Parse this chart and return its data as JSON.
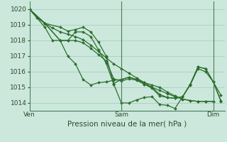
{
  "xlabel": "Pression niveau de la mer( hPa )",
  "bg_color": "#cce8dc",
  "grid_color": "#aacfbe",
  "line_color": "#2d6e2d",
  "marker": "D",
  "marker_size": 2.0,
  "line_width": 0.9,
  "ylim": [
    1013.5,
    1020.5
  ],
  "yticks": [
    1014,
    1015,
    1016,
    1017,
    1018,
    1019,
    1020
  ],
  "tick_fontsize": 6.5,
  "label_fontsize": 7.5,
  "xtick_labels": [
    "Ven",
    "Sam",
    "Dim"
  ],
  "xtick_positions": [
    0,
    96,
    192
  ],
  "xlim": [
    0,
    204
  ],
  "vline_positions": [
    0,
    96,
    192
  ],
  "series": [
    [
      [
        0,
        1020.0
      ],
      [
        8,
        1019.45
      ],
      [
        16,
        1019.1
      ],
      [
        24,
        1018.8
      ],
      [
        32,
        1018.55
      ],
      [
        40,
        1018.4
      ],
      [
        48,
        1018.25
      ],
      [
        56,
        1018.05
      ],
      [
        64,
        1017.7
      ],
      [
        72,
        1017.3
      ],
      [
        80,
        1016.9
      ],
      [
        88,
        1016.5
      ],
      [
        96,
        1016.2
      ],
      [
        104,
        1015.9
      ],
      [
        112,
        1015.6
      ],
      [
        120,
        1015.3
      ],
      [
        128,
        1015.0
      ],
      [
        136,
        1014.8
      ],
      [
        144,
        1014.6
      ],
      [
        152,
        1014.4
      ],
      [
        160,
        1014.25
      ],
      [
        168,
        1014.15
      ],
      [
        176,
        1014.1
      ],
      [
        184,
        1014.1
      ],
      [
        192,
        1014.1
      ]
    ],
    [
      [
        0,
        1020.0
      ],
      [
        16,
        1019.1
      ],
      [
        32,
        1018.85
      ],
      [
        40,
        1018.6
      ],
      [
        48,
        1018.7
      ],
      [
        56,
        1018.85
      ],
      [
        64,
        1018.55
      ],
      [
        72,
        1017.9
      ],
      [
        80,
        1017.0
      ],
      [
        88,
        1015.25
      ],
      [
        96,
        1015.5
      ],
      [
        104,
        1015.65
      ],
      [
        112,
        1015.5
      ],
      [
        120,
        1015.3
      ],
      [
        128,
        1015.15
      ],
      [
        136,
        1015.0
      ],
      [
        144,
        1014.7
      ],
      [
        152,
        1014.45
      ],
      [
        160,
        1014.25
      ],
      [
        168,
        1014.15
      ],
      [
        176,
        1014.1
      ],
      [
        184,
        1014.1
      ],
      [
        192,
        1014.1
      ]
    ],
    [
      [
        0,
        1020.0
      ],
      [
        16,
        1019.1
      ],
      [
        32,
        1018.0
      ],
      [
        40,
        1018.0
      ],
      [
        48,
        1018.55
      ],
      [
        56,
        1018.55
      ],
      [
        64,
        1018.25
      ],
      [
        72,
        1017.4
      ],
      [
        80,
        1016.55
      ],
      [
        88,
        1015.2
      ],
      [
        96,
        1014.0
      ],
      [
        104,
        1014.0
      ],
      [
        112,
        1014.2
      ],
      [
        120,
        1014.35
      ],
      [
        128,
        1014.4
      ],
      [
        136,
        1013.9
      ],
      [
        144,
        1013.85
      ],
      [
        152,
        1013.65
      ],
      [
        160,
        1014.4
      ],
      [
        168,
        1015.2
      ],
      [
        176,
        1016.3
      ],
      [
        184,
        1016.2
      ],
      [
        192,
        1015.35
      ],
      [
        200,
        1014.5
      ]
    ],
    [
      [
        0,
        1020.0
      ],
      [
        16,
        1019.1
      ],
      [
        32,
        1018.0
      ],
      [
        40,
        1017.0
      ],
      [
        48,
        1016.5
      ],
      [
        56,
        1015.5
      ],
      [
        64,
        1015.15
      ],
      [
        72,
        1015.3
      ],
      [
        80,
        1015.35
      ],
      [
        88,
        1015.45
      ],
      [
        96,
        1015.5
      ],
      [
        104,
        1015.65
      ],
      [
        112,
        1015.5
      ],
      [
        120,
        1015.2
      ],
      [
        128,
        1014.95
      ],
      [
        136,
        1014.45
      ],
      [
        144,
        1014.35
      ],
      [
        152,
        1014.3
      ],
      [
        160,
        1014.4
      ],
      [
        168,
        1015.2
      ],
      [
        176,
        1016.3
      ],
      [
        184,
        1016.2
      ],
      [
        192,
        1015.35
      ],
      [
        200,
        1014.15
      ]
    ],
    [
      [
        0,
        1020.0
      ],
      [
        16,
        1018.85
      ],
      [
        24,
        1018.0
      ],
      [
        32,
        1018.0
      ],
      [
        40,
        1018.0
      ],
      [
        48,
        1018.0
      ],
      [
        56,
        1017.85
      ],
      [
        64,
        1017.5
      ],
      [
        72,
        1017.1
      ],
      [
        80,
        1016.7
      ],
      [
        88,
        1015.55
      ],
      [
        96,
        1015.4
      ],
      [
        104,
        1015.55
      ],
      [
        112,
        1015.45
      ],
      [
        120,
        1015.2
      ],
      [
        128,
        1015.0
      ],
      [
        136,
        1014.55
      ],
      [
        144,
        1014.35
      ],
      [
        152,
        1014.3
      ],
      [
        160,
        1014.4
      ],
      [
        168,
        1015.15
      ],
      [
        176,
        1016.2
      ],
      [
        184,
        1016.0
      ],
      [
        192,
        1015.35
      ],
      [
        200,
        1014.1
      ]
    ]
  ]
}
